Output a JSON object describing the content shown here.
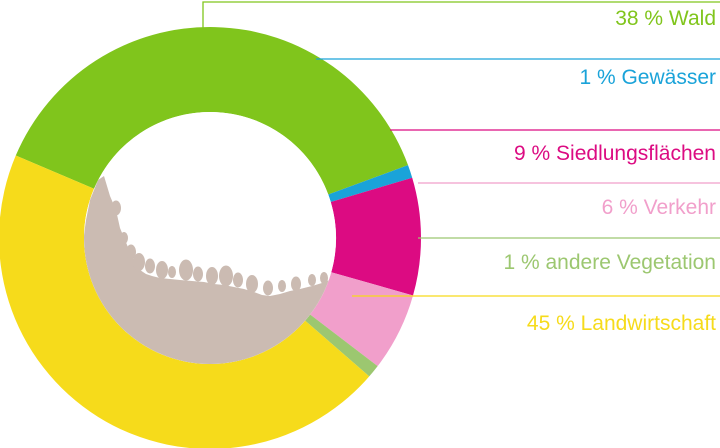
{
  "chart_data": {
    "type": "pie",
    "title": "",
    "legend": "right",
    "slices": [
      {
        "label": "38 % Wald",
        "value": 38,
        "color": "#80c51c"
      },
      {
        "label": "1 % Gewässer",
        "value": 1,
        "color": "#1aa3d9"
      },
      {
        "label": "9 % Siedlungsflächen",
        "value": 9,
        "color": "#dc0b82"
      },
      {
        "label": "6 % Verkehr",
        "value": 6,
        "color": "#f19fcb"
      },
      {
        "label": "1 % andere Vegetation",
        "value": 1,
        "color": "#9cc770"
      },
      {
        "label": "45 % Landwirtschaft",
        "value": 45,
        "color": "#f6db1b"
      }
    ]
  },
  "illustration": {
    "name": "landscape-silhouette",
    "color": "#cbbbb2"
  }
}
